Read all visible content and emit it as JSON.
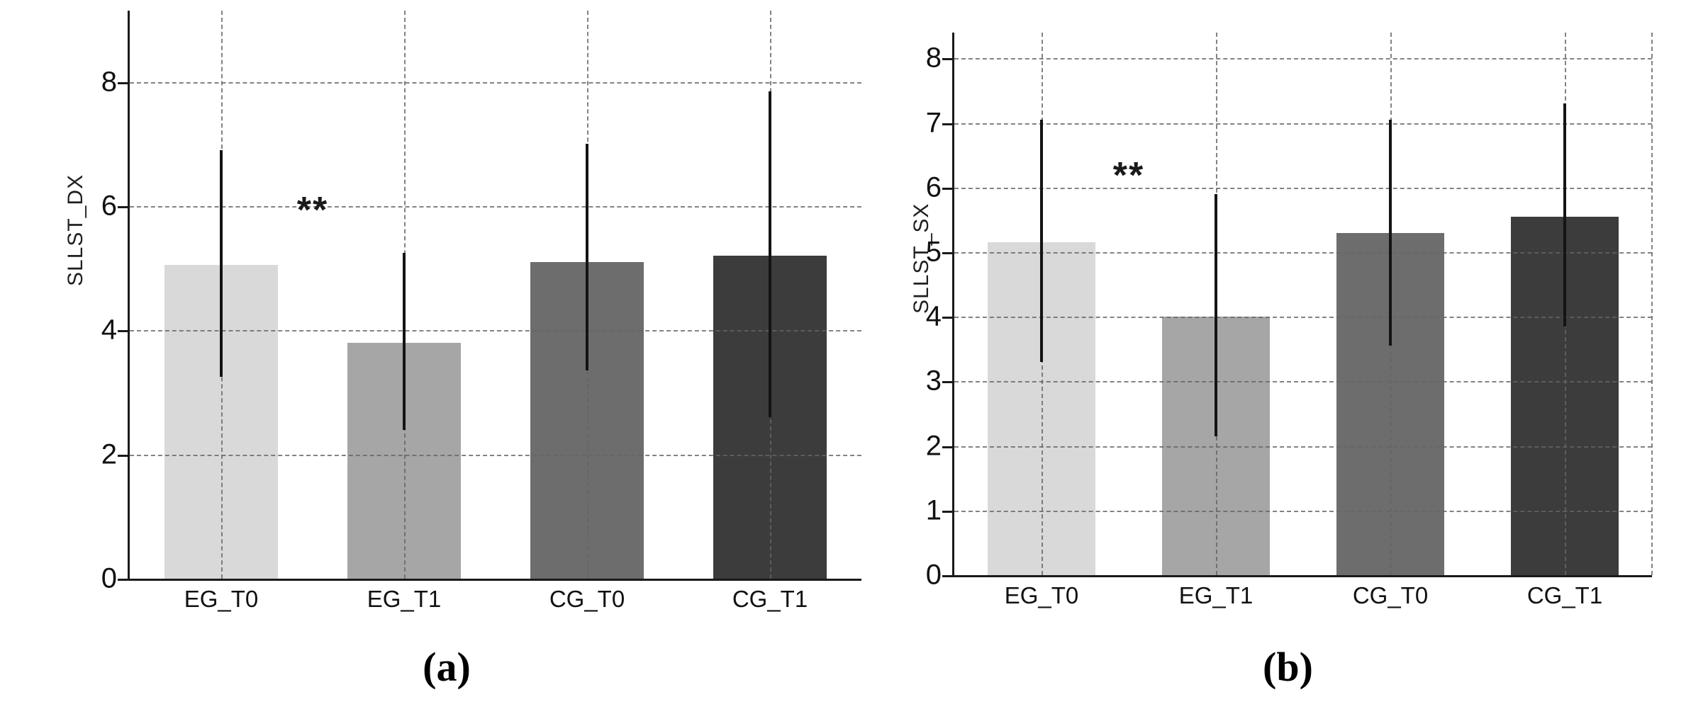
{
  "colors": {
    "background": "#ffffff",
    "axis": "#1a1a1a",
    "grid": "#646464",
    "error_bar": "#141414",
    "text": "#111111"
  },
  "chart_data": [
    {
      "type": "bar",
      "panel_label": "(a)",
      "ylabel": "SLLST_DX",
      "xlabel": "",
      "categories": [
        "EG_T0",
        "EG_T1",
        "CG_T0",
        "CG_T1"
      ],
      "values": [
        5.05,
        3.8,
        5.1,
        5.2
      ],
      "errors_low": [
        3.25,
        2.4,
        3.35,
        2.6
      ],
      "errors_high": [
        6.9,
        5.25,
        7.0,
        7.85
      ],
      "bar_colors": [
        "#d9d9d9",
        "#a6a6a6",
        "#6d6d6d",
        "#3c3c3c"
      ],
      "yticks": [
        0,
        2,
        4,
        6,
        8
      ],
      "ylim": [
        0,
        9.15
      ],
      "grid": true,
      "legend": null,
      "annotation": {
        "text": "**",
        "between_categories": [
          0,
          1
        ],
        "y_value": 5.9
      },
      "bar_width_fraction": 0.62,
      "right_edge_gridline": false
    },
    {
      "type": "bar",
      "panel_label": "(b)",
      "ylabel": "SLLST_SX",
      "xlabel": "",
      "categories": [
        "EG_T0",
        "EG_T1",
        "CG_T0",
        "CG_T1"
      ],
      "values": [
        5.15,
        4.0,
        5.3,
        5.55
      ],
      "errors_low": [
        3.3,
        2.15,
        3.55,
        3.85
      ],
      "errors_high": [
        7.05,
        5.9,
        7.05,
        7.3
      ],
      "bar_colors": [
        "#d9d9d9",
        "#a6a6a6",
        "#6d6d6d",
        "#3c3c3c"
      ],
      "yticks": [
        0,
        1,
        2,
        3,
        4,
        5,
        6,
        7,
        8
      ],
      "ylim": [
        0,
        8.4
      ],
      "grid": true,
      "legend": null,
      "annotation": {
        "text": "**",
        "between_categories": [
          0,
          1
        ],
        "y_value": 6.15
      },
      "bar_width_fraction": 0.62,
      "right_edge_gridline": true
    }
  ]
}
